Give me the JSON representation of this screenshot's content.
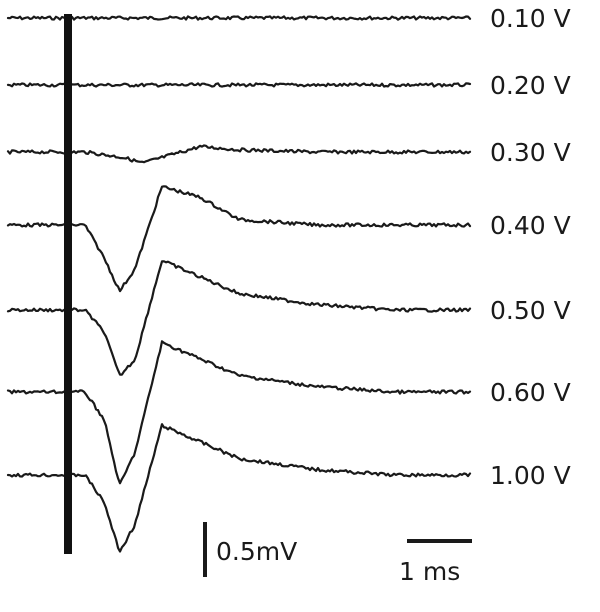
{
  "chart_data": {
    "type": "line",
    "description_units": {
      "x": "ms",
      "y": "mV"
    },
    "stimulus_time_ms": 0.0,
    "series": [
      {
        "name": "0.10 V",
        "x": [
          0,
          1.0,
          1.5,
          2.0,
          2.5,
          3.0,
          4.0,
          5.0,
          6.0
        ],
        "y": [
          0,
          0,
          0,
          0,
          0,
          0,
          0,
          0,
          0
        ]
      },
      {
        "name": "0.20 V",
        "x": [
          0,
          1.0,
          1.5,
          2.0,
          2.5,
          3.0,
          4.0,
          5.0,
          6.0
        ],
        "y": [
          0,
          0,
          0,
          0,
          0,
          0,
          0,
          0,
          0
        ]
      },
      {
        "name": "0.30 V",
        "x": [
          0,
          1.0,
          1.5,
          1.75,
          2.0,
          2.5,
          3.0,
          4.0,
          5.0,
          6.0
        ],
        "y": [
          0,
          0,
          -0.05,
          -0.1,
          -0.05,
          0.05,
          0.02,
          0,
          0,
          0
        ]
      },
      {
        "name": "0.40 V",
        "x": [
          0,
          1.0,
          1.25,
          1.45,
          1.65,
          2.0,
          2.5,
          3.0,
          4.0,
          5.0,
          6.0
        ],
        "y": [
          0,
          0,
          -0.3,
          -0.6,
          -0.4,
          0.35,
          0.25,
          0.05,
          0,
          0,
          0
        ]
      },
      {
        "name": "0.50 V",
        "x": [
          0,
          1.0,
          1.25,
          1.45,
          1.65,
          2.0,
          2.5,
          3.0,
          4.0,
          5.0,
          6.0
        ],
        "y": [
          0,
          0,
          -0.2,
          -0.6,
          -0.45,
          0.45,
          0.3,
          0.15,
          0.05,
          0,
          0
        ]
      },
      {
        "name": "0.60 V",
        "x": [
          0,
          1.0,
          1.25,
          1.45,
          1.65,
          2.0,
          2.5,
          3.0,
          4.0,
          5.0,
          6.0
        ],
        "y": [
          0,
          0,
          -0.25,
          -0.85,
          -0.55,
          0.45,
          0.3,
          0.15,
          0.05,
          0,
          0
        ]
      },
      {
        "name": "1.00 V",
        "x": [
          0,
          1.0,
          1.25,
          1.45,
          1.65,
          2.0,
          2.5,
          3.0,
          4.0,
          5.0,
          6.0
        ],
        "y": [
          0,
          0,
          -0.25,
          -0.7,
          -0.45,
          0.45,
          0.3,
          0.15,
          0.05,
          0,
          0
        ]
      }
    ],
    "scale_bars": {
      "voltage": {
        "label": "0.5mV",
        "value": 0.5
      },
      "time": {
        "label": "1 ms",
        "value": 1
      }
    },
    "grid": false,
    "legend": "none"
  }
}
